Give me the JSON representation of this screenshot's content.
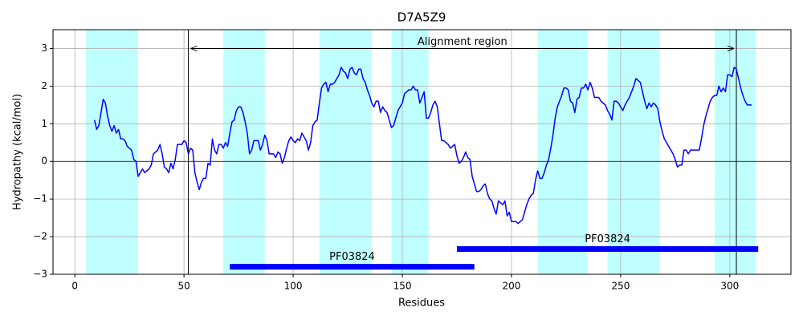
{
  "chart_data": {
    "type": "line",
    "title": "D7A5Z9",
    "xlabel": "Residues",
    "ylabel": "Hydropathy (kcal/mol)",
    "x": [
      9,
      10,
      11,
      12,
      13,
      14,
      15,
      16,
      17,
      18,
      19,
      20,
      21,
      22,
      23,
      24,
      25,
      26,
      27,
      28,
      29,
      30,
      31,
      32,
      33,
      34,
      35,
      36,
      37,
      38,
      39,
      40,
      41,
      42,
      43,
      44,
      45,
      46,
      47,
      48,
      49,
      50,
      51,
      52,
      53,
      54,
      55,
      56,
      57,
      58,
      59,
      60,
      61,
      62,
      63,
      64,
      65,
      66,
      67,
      68,
      69,
      70,
      71,
      72,
      73,
      74,
      75,
      76,
      77,
      78,
      79,
      80,
      81,
      82,
      83,
      84,
      85,
      86,
      87,
      88,
      89,
      90,
      91,
      92,
      93,
      94,
      95,
      96,
      97,
      98,
      99,
      100,
      101,
      102,
      103,
      104,
      105,
      106,
      107,
      108,
      109,
      110,
      111,
      112,
      113,
      114,
      115,
      116,
      117,
      118,
      119,
      120,
      121,
      122,
      123,
      124,
      125,
      126,
      127,
      128,
      129,
      130,
      131,
      132,
      133,
      134,
      135,
      136,
      137,
      138,
      139,
      140,
      141,
      142,
      143,
      144,
      145,
      146,
      147,
      148,
      149,
      150,
      151,
      152,
      153,
      154,
      155,
      156,
      157,
      158,
      159,
      160,
      161,
      162,
      163,
      164,
      165,
      166,
      167,
      168,
      169,
      170,
      171,
      172,
      173,
      174,
      175,
      176,
      177,
      178,
      179,
      180,
      181,
      182,
      183,
      184,
      185,
      186,
      187,
      188,
      189,
      190,
      191,
      192,
      193,
      194,
      195,
      196,
      197,
      198,
      199,
      200,
      201,
      202,
      203,
      204,
      205,
      206,
      207,
      208,
      209,
      210,
      211,
      212,
      213,
      214,
      215,
      216,
      217,
      218,
      219,
      220,
      221,
      222,
      223,
      224,
      225,
      226,
      227,
      228,
      229,
      230,
      231,
      232,
      233,
      234,
      235,
      236,
      237,
      238,
      239,
      240,
      241,
      242,
      243,
      244,
      245,
      246,
      247,
      248,
      249,
      250,
      251,
      252,
      253,
      254,
      255,
      256,
      257,
      258,
      259,
      260,
      261,
      262,
      263,
      264,
      265,
      266,
      267,
      268,
      269,
      270,
      271,
      272,
      273,
      274,
      275,
      276,
      277,
      278,
      279,
      280,
      281,
      282,
      283,
      284,
      285,
      286,
      287,
      288,
      289,
      290,
      291,
      292,
      293,
      294,
      295,
      296,
      297,
      298,
      299,
      300,
      301,
      302,
      303,
      304,
      305,
      306,
      307,
      308,
      309,
      310
    ],
    "series": [
      {
        "color": "#0000ff",
        "values": [
          1.1,
          0.85,
          0.95,
          1.3,
          1.65,
          1.55,
          1.2,
          0.95,
          0.8,
          0.95,
          0.75,
          0.85,
          0.6,
          0.6,
          0.55,
          0.4,
          0.35,
          0.3,
          0.05,
          0.0,
          -0.4,
          -0.3,
          -0.2,
          -0.3,
          -0.25,
          -0.2,
          -0.1,
          0.2,
          0.25,
          0.3,
          0.45,
          0.2,
          -0.15,
          -0.2,
          -0.3,
          -0.05,
          -0.2,
          0.05,
          0.45,
          0.45,
          0.45,
          0.55,
          0.5,
          0.2,
          0.35,
          0.3,
          -0.3,
          -0.55,
          -0.75,
          -0.55,
          -0.45,
          -0.45,
          -0.05,
          -0.1,
          0.6,
          0.3,
          0.2,
          0.45,
          0.45,
          0.35,
          0.5,
          0.4,
          0.75,
          1.05,
          1.1,
          1.35,
          1.45,
          1.45,
          1.3,
          1.05,
          0.75,
          0.2,
          0.3,
          0.55,
          0.55,
          0.55,
          0.3,
          0.45,
          0.7,
          0.55,
          0.2,
          0.2,
          0.2,
          0.1,
          0.25,
          0.2,
          -0.05,
          0.1,
          0.35,
          0.55,
          0.65,
          0.55,
          0.5,
          0.6,
          0.55,
          0.75,
          0.65,
          0.55,
          0.3,
          0.5,
          0.95,
          1.05,
          1.1,
          1.55,
          1.95,
          2.05,
          2.1,
          1.85,
          2.05,
          2.05,
          2.1,
          2.2,
          2.3,
          2.5,
          2.4,
          2.35,
          2.2,
          2.45,
          2.5,
          2.35,
          2.3,
          2.45,
          2.45,
          2.2,
          2.1,
          1.9,
          1.75,
          1.55,
          1.45,
          1.6,
          1.6,
          1.3,
          1.45,
          1.35,
          1.3,
          1.1,
          0.9,
          0.95,
          1.15,
          1.35,
          1.45,
          1.55,
          1.8,
          1.85,
          1.9,
          1.9,
          2.0,
          1.9,
          1.9,
          1.55,
          1.7,
          1.85,
          1.15,
          1.15,
          1.3,
          1.5,
          1.6,
          1.45,
          1.0,
          0.55,
          0.55,
          0.5,
          0.45,
          0.35,
          0.4,
          0.45,
          0.15,
          -0.05,
          0.0,
          0.1,
          0.25,
          0.1,
          0.05,
          -0.4,
          -0.6,
          -0.8,
          -0.8,
          -0.75,
          -0.65,
          -0.6,
          -0.85,
          -1.0,
          -1.05,
          -1.25,
          -1.4,
          -1.05,
          -1.1,
          -1.15,
          -1.05,
          -1.45,
          -1.35,
          -1.6,
          -1.6,
          -1.6,
          -1.65,
          -1.6,
          -1.55,
          -1.35,
          -1.15,
          -1.0,
          -0.9,
          -0.85,
          -0.5,
          -0.25,
          -0.45,
          -0.45,
          -0.3,
          -0.1,
          0.05,
          0.35,
          0.7,
          1.15,
          1.45,
          1.6,
          1.75,
          1.95,
          1.95,
          1.9,
          1.6,
          1.55,
          1.3,
          1.65,
          1.7,
          1.95,
          1.95,
          2.05,
          1.9,
          2.1,
          1.95,
          1.7,
          1.7,
          1.7,
          1.6,
          1.55,
          1.5,
          1.35,
          1.25,
          1.1,
          1.6,
          1.6,
          1.55,
          1.45,
          1.35,
          1.5,
          1.6,
          1.7,
          1.85,
          2.0,
          2.2,
          2.15,
          2.1,
          1.85,
          1.6,
          1.4,
          1.55,
          1.45,
          1.55,
          1.5,
          1.4,
          1.05,
          0.8,
          0.6,
          0.5,
          0.4,
          0.3,
          0.2,
          0.05,
          -0.15,
          -0.1,
          -0.1,
          0.3,
          0.3,
          0.2,
          0.3,
          0.3,
          0.3,
          0.3,
          0.3,
          0.6,
          0.95,
          1.2,
          1.4,
          1.6,
          1.7,
          1.75,
          1.75,
          2.0,
          1.85,
          1.95,
          1.85,
          2.3,
          2.3,
          2.25,
          2.5,
          2.45,
          2.2,
          1.95,
          1.75,
          1.6,
          1.5,
          1.5,
          1.5
        ]
      }
    ],
    "xlim": [
      -10,
      328
    ],
    "ylim": [
      -3,
      3.5
    ],
    "xticks": [
      0,
      50,
      100,
      150,
      200,
      250,
      300
    ],
    "yticks": [
      {
        "value": -3,
        "label": "−3"
      },
      {
        "value": -2,
        "label": "−2"
      },
      {
        "value": -1,
        "label": "−1"
      },
      0,
      1,
      2,
      3
    ],
    "grid": true,
    "zero_line": 0,
    "shaded_regions": [
      [
        5,
        29
      ],
      [
        68,
        87
      ],
      [
        112,
        136
      ],
      [
        145,
        162
      ],
      [
        212,
        235
      ],
      [
        244,
        268
      ],
      [
        293,
        312
      ]
    ],
    "shaded_color": "#c0ffff",
    "alignment_region": {
      "label": "Alignment region",
      "start": 52,
      "end": 303,
      "y": 3
    },
    "domains": [
      {
        "label": "PF03824",
        "start": 71,
        "end": 183,
        "y": -2.8,
        "color": "#0000ff"
      },
      {
        "label": "PF03824",
        "start": 175,
        "end": 313,
        "y": -2.33,
        "color": "#0000ff"
      }
    ]
  }
}
